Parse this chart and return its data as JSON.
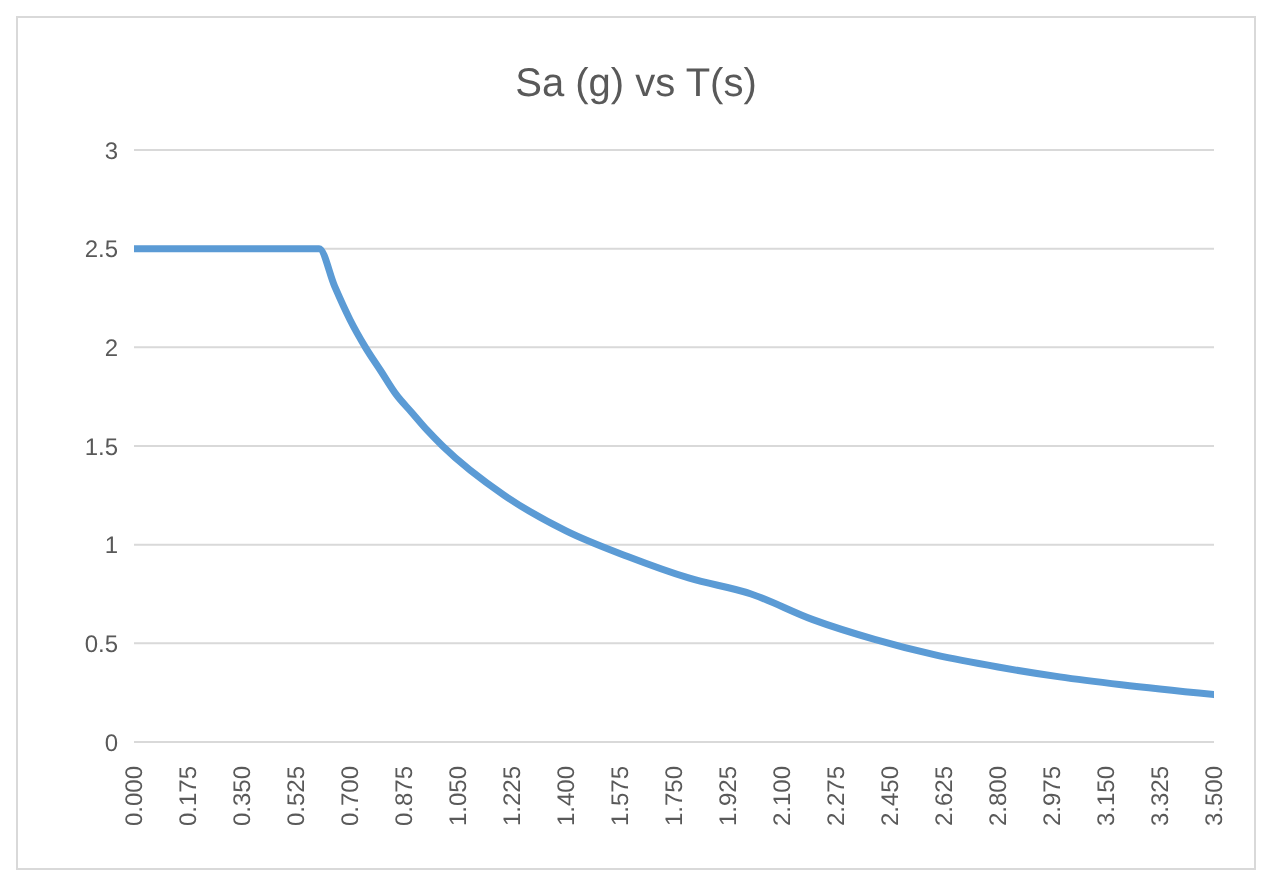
{
  "chart_data": {
    "type": "line",
    "title": "Sa (g) vs T(s)",
    "x": [
      0,
      0.6,
      0.65,
      0.7,
      0.75,
      0.8,
      0.85,
      0.9,
      0.95,
      1.0,
      1.2,
      1.4,
      1.6,
      1.8,
      2.0,
      2.2,
      2.4,
      2.6,
      2.8,
      3.0,
      3.2,
      3.5
    ],
    "series": [
      {
        "color": "#5b9bd5",
        "values": [
          2.5,
          2.5,
          2.31,
          2.14,
          2.0,
          1.88,
          1.76,
          1.67,
          1.58,
          1.5,
          1.25,
          1.07,
          0.94,
          0.83,
          0.75,
          0.62,
          0.52,
          0.44,
          0.38,
          0.33,
          0.29,
          0.24
        ]
      }
    ],
    "xlim": [
      0,
      3.5
    ],
    "xticks": [
      {
        "value": 0,
        "label": "0.000"
      },
      {
        "value": 0.175,
        "label": "0.175"
      },
      {
        "value": 0.35,
        "label": "0.350"
      },
      {
        "value": 0.525,
        "label": "0.525"
      },
      {
        "value": 0.7,
        "label": "0.700"
      },
      {
        "value": 0.875,
        "label": "0.875"
      },
      {
        "value": 1.05,
        "label": "1.050"
      },
      {
        "value": 1.225,
        "label": "1.225"
      },
      {
        "value": 1.4,
        "label": "1.400"
      },
      {
        "value": 1.575,
        "label": "1.575"
      },
      {
        "value": 1.75,
        "label": "1.750"
      },
      {
        "value": 1.925,
        "label": "1.925"
      },
      {
        "value": 2.1,
        "label": "2.100"
      },
      {
        "value": 2.275,
        "label": "2.275"
      },
      {
        "value": 2.45,
        "label": "2.450"
      },
      {
        "value": 2.625,
        "label": "2.625"
      },
      {
        "value": 2.8,
        "label": "2.800"
      },
      {
        "value": 2.975,
        "label": "2.975"
      },
      {
        "value": 3.15,
        "label": "3.150"
      },
      {
        "value": 3.325,
        "label": "3.325"
      },
      {
        "value": 3.5,
        "label": "3.500"
      }
    ],
    "ylim": [
      0,
      3
    ],
    "yticks": [
      0,
      0.5,
      1,
      1.5,
      2,
      2.5,
      3
    ],
    "grid": "y",
    "marker": "none",
    "line_style": "solid"
  }
}
